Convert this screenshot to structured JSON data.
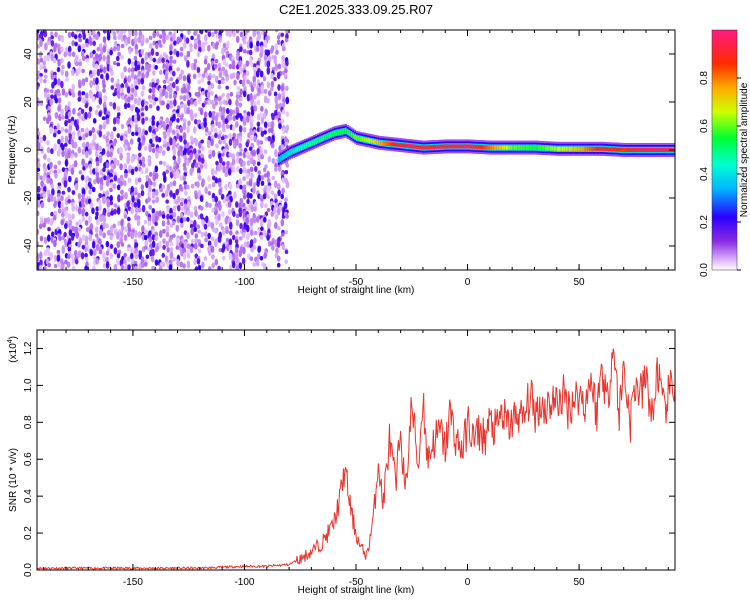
{
  "title": "C2E1.2025.333.09.25.R07",
  "chart_data": [
    {
      "type": "heatmap",
      "xlabel": "Height of straight line (km)",
      "ylabel": "Frequency (Hz)",
      "xlim": [
        -193,
        93
      ],
      "ylim": [
        -50,
        50
      ],
      "xticks": [
        -150,
        -100,
        -50,
        0,
        50
      ],
      "yticks": [
        -40,
        -20,
        0,
        20,
        40
      ],
      "colorbar": {
        "label": "Normalized spectral amplitude",
        "range": [
          0.0,
          1.0
        ],
        "ticks": [
          "0.0",
          "0.2",
          "0.4",
          "0.6",
          "0.8"
        ]
      },
      "noise_region_x": [
        -193,
        -83
      ],
      "signal_ridge": [
        {
          "x": -85,
          "f": -4.0,
          "amp": 0.35
        },
        {
          "x": -80,
          "f": -1.0,
          "amp": 0.4
        },
        {
          "x": -75,
          "f": 1.0,
          "amp": 0.45
        },
        {
          "x": -70,
          "f": 3.0,
          "amp": 0.48
        },
        {
          "x": -65,
          "f": 5.0,
          "amp": 0.5
        },
        {
          "x": -60,
          "f": 7.0,
          "amp": 0.52
        },
        {
          "x": -55,
          "f": 8.0,
          "amp": 0.55
        },
        {
          "x": -50,
          "f": 5.0,
          "amp": 0.6
        },
        {
          "x": -45,
          "f": 4.0,
          "amp": 0.65
        },
        {
          "x": -40,
          "f": 3.0,
          "amp": 0.75
        },
        {
          "x": -35,
          "f": 2.5,
          "amp": 0.85
        },
        {
          "x": -30,
          "f": 2.0,
          "amp": 0.9
        },
        {
          "x": -25,
          "f": 1.5,
          "amp": 0.95
        },
        {
          "x": -20,
          "f": 1.0,
          "amp": 0.9
        },
        {
          "x": -10,
          "f": 1.5,
          "amp": 0.92
        },
        {
          "x": 0,
          "f": 1.5,
          "amp": 0.95
        },
        {
          "x": 10,
          "f": 1.0,
          "amp": 0.8
        },
        {
          "x": 20,
          "f": 1.0,
          "amp": 0.6
        },
        {
          "x": 30,
          "f": 1.0,
          "amp": 0.55
        },
        {
          "x": 40,
          "f": 0.5,
          "amp": 0.65
        },
        {
          "x": 50,
          "f": 0.5,
          "amp": 0.75
        },
        {
          "x": 60,
          "f": 0.5,
          "amp": 0.9
        },
        {
          "x": 70,
          "f": 0.0,
          "amp": 0.85
        },
        {
          "x": 80,
          "f": 0.0,
          "amp": 0.95
        },
        {
          "x": 93,
          "f": 0.0,
          "amp": 0.95
        }
      ]
    },
    {
      "type": "line",
      "xlabel": "Height of straight line (km)",
      "ylabel": "SNR (10 * v/v)",
      "yscale_label": "(x10",
      "yscale_exp": "4",
      "xlim": [
        -193,
        93
      ],
      "ylim": [
        0.0,
        1.3
      ],
      "xticks": [
        -150,
        -100,
        -50,
        0,
        50
      ],
      "yticks": [
        "0.0",
        "0.2",
        "0.4",
        "0.6",
        "0.8",
        "1.0",
        "1.2"
      ],
      "color": "#e8352e",
      "series": [
        {
          "x": [
            -193,
            -180,
            -160,
            -140,
            -120,
            -100,
            -90,
            -80,
            -75,
            -70,
            -65,
            -60,
            -57,
            -55,
            -52,
            -50,
            -48,
            -45,
            -42,
            -40,
            -38,
            -35,
            -32,
            -30,
            -28,
            -25,
            -22,
            -20,
            -18,
            -15,
            -12,
            -10,
            -8,
            -5,
            -2,
            0,
            3,
            5,
            8,
            10,
            13,
            15,
            18,
            20,
            23,
            25,
            28,
            30,
            33,
            35,
            38,
            40,
            43,
            45,
            48,
            50,
            53,
            55,
            58,
            60,
            63,
            65,
            68,
            70,
            73,
            75,
            78,
            80,
            83,
            85,
            88,
            90,
            93
          ],
          "y": [
            0.01,
            0.01,
            0.01,
            0.01,
            0.01,
            0.02,
            0.02,
            0.03,
            0.06,
            0.1,
            0.15,
            0.25,
            0.4,
            0.55,
            0.3,
            0.2,
            0.12,
            0.08,
            0.3,
            0.6,
            0.35,
            0.7,
            0.45,
            0.8,
            0.4,
            0.9,
            0.55,
            0.95,
            0.6,
            0.7,
            0.75,
            0.65,
            0.85,
            0.7,
            0.65,
            0.8,
            0.7,
            0.75,
            0.72,
            0.8,
            0.75,
            0.85,
            0.78,
            0.8,
            0.85,
            0.8,
            0.95,
            0.85,
            0.9,
            0.88,
            0.92,
            0.9,
            0.95,
            0.88,
            0.93,
            0.95,
            0.9,
            1.05,
            0.85,
            1.1,
            0.9,
            1.25,
            0.85,
            1.1,
            0.8,
            1.0,
            0.95,
            1.05,
            0.8,
            1.1,
            0.85,
            0.95,
            1.0
          ]
        }
      ]
    }
  ]
}
